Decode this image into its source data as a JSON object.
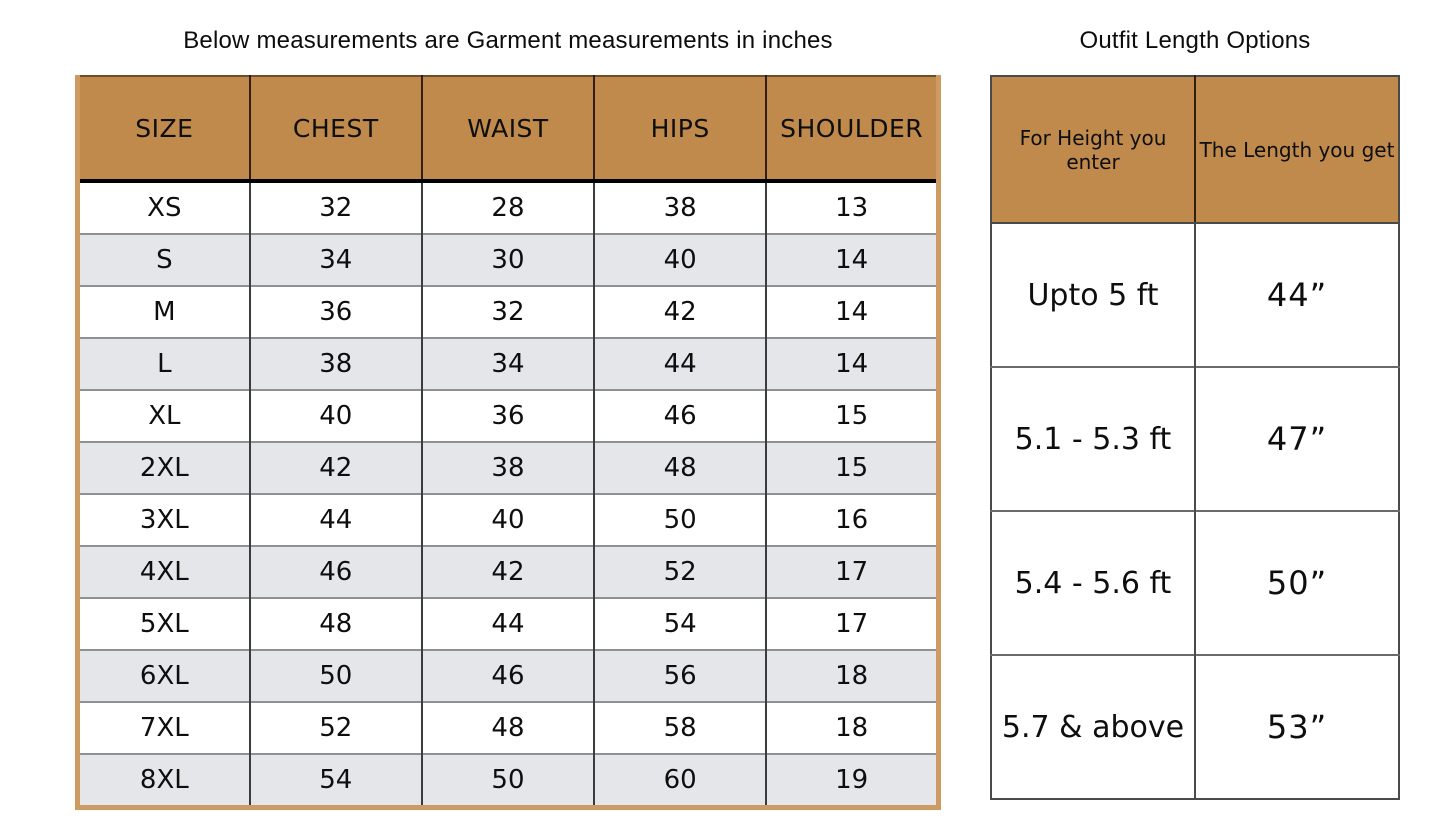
{
  "colors": {
    "header_bg": "#BF8A4C",
    "alt_row_bg": "#E5E6E9",
    "outer_border_left_table": "#CD9B62",
    "grid_line": "#4a4a4a",
    "text": "#0e0e0e"
  },
  "chart_data": [
    {
      "type": "table",
      "title": "Below measurements are Garment measurements in inches",
      "columns": [
        "SIZE",
        "CHEST",
        "WAIST",
        "HIPS",
        "SHOULDER"
      ],
      "rows": [
        [
          "XS",
          "32",
          "28",
          "38",
          "13"
        ],
        [
          "S",
          "34",
          "30",
          "40",
          "14"
        ],
        [
          "M",
          "36",
          "32",
          "42",
          "14"
        ],
        [
          "L",
          "38",
          "34",
          "44",
          "14"
        ],
        [
          "XL",
          "40",
          "36",
          "46",
          "15"
        ],
        [
          "2XL",
          "42",
          "38",
          "48",
          "15"
        ],
        [
          "3XL",
          "44",
          "40",
          "50",
          "16"
        ],
        [
          "4XL",
          "46",
          "42",
          "52",
          "17"
        ],
        [
          "5XL",
          "48",
          "44",
          "54",
          "17"
        ],
        [
          "6XL",
          "50",
          "46",
          "56",
          "18"
        ],
        [
          "7XL",
          "52",
          "48",
          "58",
          "18"
        ],
        [
          "8XL",
          "54",
          "50",
          "60",
          "19"
        ]
      ]
    },
    {
      "type": "table",
      "title": "Outfit Length Options",
      "columns": [
        "For Height you enter",
        "The Length you get"
      ],
      "rows": [
        [
          "Upto 5 ft",
          "44”"
        ],
        [
          "5.1 - 5.3 ft",
          "47”"
        ],
        [
          "5.4 - 5.6 ft",
          "50”"
        ],
        [
          "5.7 & above",
          "53”"
        ]
      ]
    }
  ]
}
